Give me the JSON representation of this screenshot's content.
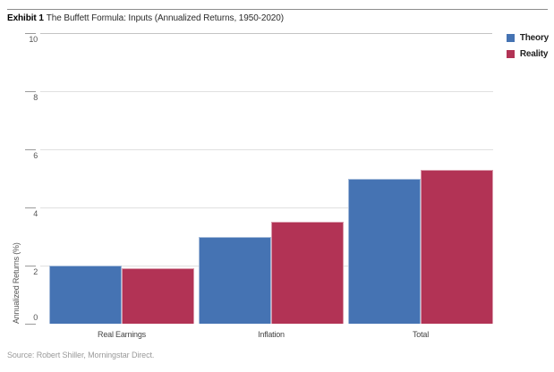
{
  "header": {
    "exhibit_label": "Exhibit 1",
    "title": "The Buffett Formula: Inputs (Annualized Returns, 1950-2020)"
  },
  "source": "Source: Robert Shiller, Morningstar Direct.",
  "colors": {
    "theory_blue": "#4573b3",
    "reality_red": "#b23355",
    "gridline": "#e0e0e0",
    "rule": "#8d8d8d"
  },
  "chart_data": {
    "type": "bar",
    "title": "The Buffett Formula: Inputs (Annualized Returns, 1950-2020)",
    "categories": [
      "Real Earnings",
      "Inflation",
      "Total"
    ],
    "series": [
      {
        "name": "Theory",
        "color": "#4573b3",
        "values": [
          2.0,
          3.0,
          5.0
        ]
      },
      {
        "name": "Reality",
        "color": "#b23355",
        "values": [
          1.9,
          3.5,
          5.3
        ]
      }
    ],
    "xlabel": "",
    "ylabel": "Annualized Returns (%)",
    "ylim": [
      0,
      10
    ],
    "y_ticks": [
      0,
      2,
      4,
      6,
      8,
      10
    ],
    "grid": "horizontal",
    "legend_position": "top-right"
  }
}
